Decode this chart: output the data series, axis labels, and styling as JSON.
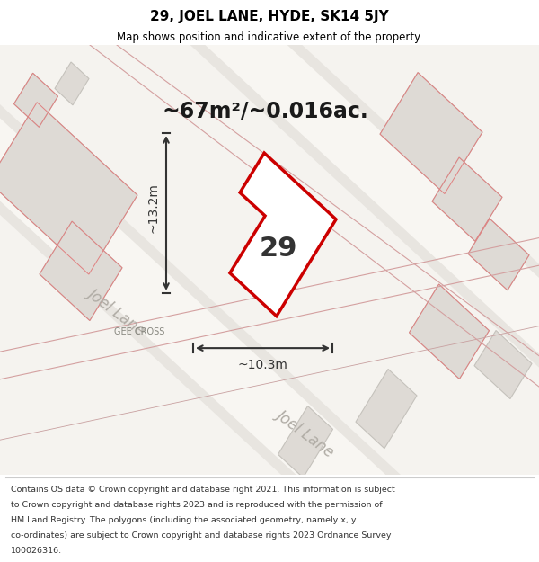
{
  "title": "29, JOEL LANE, HYDE, SK14 5JY",
  "subtitle": "Map shows position and indicative extent of the property.",
  "area_label": "~67m²/~0.016ac.",
  "number_label": "29",
  "width_label": "~10.3m",
  "height_label": "~13.2m",
  "street_label_1": "Joel Lane",
  "street_label_2": "Joel Lane",
  "gee_cross_label": "GEE CROSS",
  "bg_color": "#f0ede8",
  "property_color": "#cc0000",
  "property_fill": "#ffffff",
  "dim_color": "#333333",
  "footer_lines": [
    "Contains OS data © Crown copyright and database right 2021. This information is subject",
    "to Crown copyright and database rights 2023 and is reproduced with the permission of",
    "HM Land Registry. The polygons (including the associated geometry, namely x, y",
    "co-ordinates) are subject to Crown copyright and database rights 2023 Ordnance Survey",
    "100026316."
  ]
}
